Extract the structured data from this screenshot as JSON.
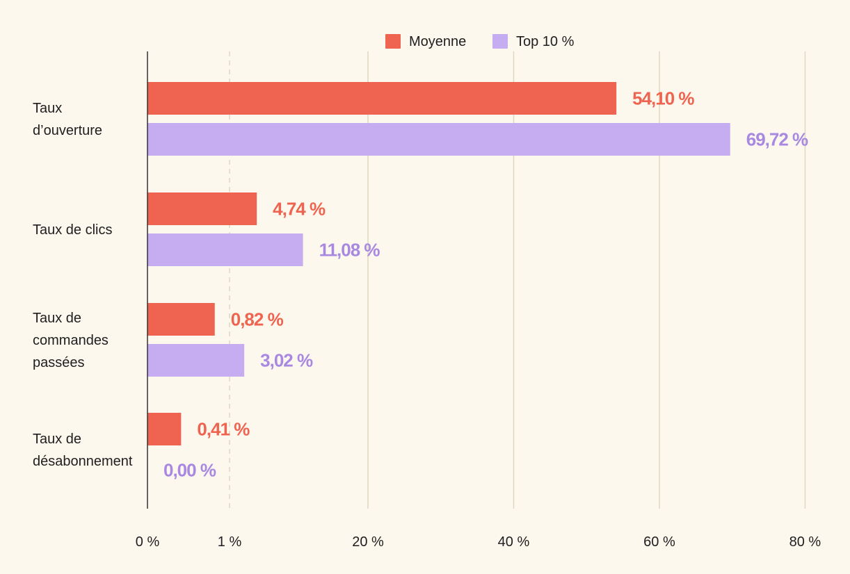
{
  "chart_data": {
    "type": "bar",
    "orientation": "horizontal",
    "categories": [
      [
        "Taux",
        "d’ouverture"
      ],
      [
        "Taux de clics"
      ],
      [
        "Taux de",
        "commandes",
        "passées"
      ],
      [
        "Taux de",
        "désabonnement"
      ]
    ],
    "series": [
      {
        "name": "Moyenne",
        "color": "#ef6450",
        "values": [
          54.1,
          4.74,
          0.82,
          0.41
        ],
        "labels": [
          "54,10 %",
          "4,74 %",
          "0,82 %",
          "0,41 %"
        ]
      },
      {
        "name": "Top 10 %",
        "color": "#c6acf0",
        "label_color": "#a888e0",
        "values": [
          69.72,
          11.08,
          3.02,
          0.0
        ],
        "labels": [
          "69,72 %",
          "11,08 %",
          "3,02 %",
          "0,00 %"
        ]
      }
    ],
    "x_axis": {
      "scale": "piecewise",
      "breakpoint": 1,
      "ticks": [
        0,
        1,
        20,
        40,
        60,
        80
      ],
      "tick_labels": [
        "0 %",
        "1 %",
        "20 %",
        "40 %",
        "60 %",
        "80 %"
      ],
      "dashed_ticks": [
        1
      ],
      "range": [
        0,
        80
      ]
    },
    "legend": "top-center",
    "grid": true,
    "colors": {
      "background": "#fdf8ee",
      "grid": "#ddd8c0",
      "axis": "#333333",
      "text": "#1e1e1e"
    }
  }
}
